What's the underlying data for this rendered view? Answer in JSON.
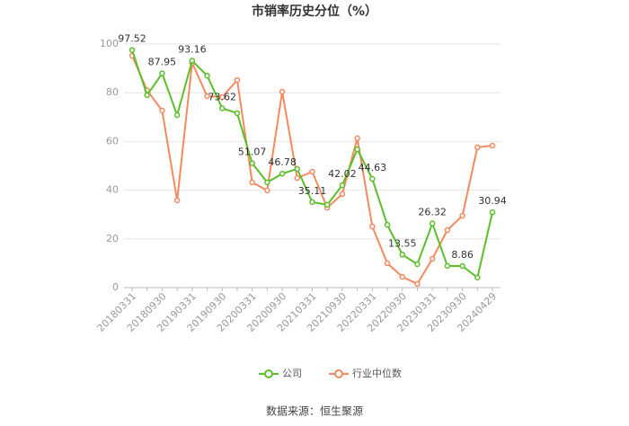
{
  "chart_data": {
    "type": "line",
    "title": "市销率历史分位（%）",
    "categories": [
      "20180331",
      null,
      "20180930",
      null,
      "20190331",
      null,
      "20190930",
      null,
      "20200331",
      null,
      "20200930",
      null,
      "20210331",
      null,
      "20210930",
      null,
      "20220331",
      null,
      "20220930",
      null,
      "20230331",
      null,
      "20230930",
      null,
      "20240429"
    ],
    "series": [
      {
        "name": "公司",
        "color": "#5cbf2a",
        "values": [
          97.52,
          79,
          87.95,
          70.8,
          93.16,
          87,
          73.62,
          71.6,
          51.07,
          43.2,
          46.78,
          48.7,
          35.11,
          34,
          42.02,
          56.8,
          44.63,
          25.8,
          13.55,
          9.6,
          26.32,
          8.9,
          8.86,
          4.1,
          30.94
        ],
        "value_labels": [
          "97.52",
          null,
          "87.95",
          null,
          "93.16",
          null,
          "73.62",
          null,
          "51.07",
          null,
          "46.78",
          null,
          "35.11",
          null,
          "42.02",
          null,
          "44.63",
          null,
          "13.55",
          null,
          "26.32",
          null,
          "8.86",
          null,
          "30.94"
        ]
      },
      {
        "name": "行业中位数",
        "color": "#f4895f",
        "values": [
          95.2,
          81,
          72.7,
          35.8,
          92.3,
          78.6,
          78.2,
          85.2,
          43.2,
          39.9,
          80.4,
          45,
          47.6,
          32.8,
          38.4,
          61.3,
          25.1,
          10,
          4.4,
          1.5,
          11.8,
          23.6,
          29.5,
          57.6,
          58.3
        ]
      }
    ],
    "ylim": [
      0,
      100
    ],
    "yticks": [
      0,
      20,
      40,
      60,
      80,
      100
    ],
    "grid": true,
    "legend": "bottom",
    "source": "数据来源：恒生聚源"
  }
}
